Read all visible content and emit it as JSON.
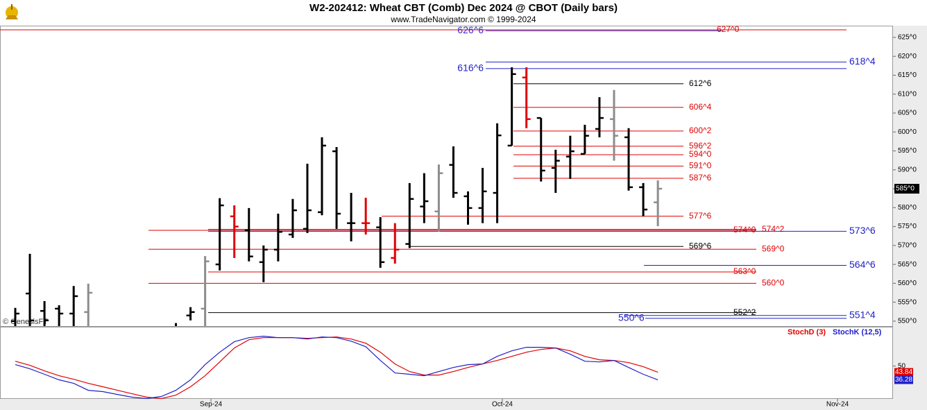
{
  "chart_data": [
    {
      "type": "ohlc",
      "title": "W2-202412:  Wheat CBT (Comb) Dec 2024 @ CBOT  (Daily bars)",
      "subtitle": "www.TradeNavigator.com © 1999-2024",
      "annotations": [
        "© GenesisFT"
      ],
      "last_label": "585^0",
      "xlim": [
        -1.045,
        60.1
      ],
      "ylim": [
        548.7,
        628.1
      ],
      "yticks": [
        {
          "value": 550,
          "label": "550^0"
        },
        {
          "value": 555,
          "label": "555^0"
        },
        {
          "value": 560,
          "label": "560^0"
        },
        {
          "value": 565,
          "label": "565^0"
        },
        {
          "value": 570,
          "label": "570^0"
        },
        {
          "value": 575,
          "label": "575^0"
        },
        {
          "value": 580,
          "label": "580^0"
        },
        {
          "value": 585,
          "label": "585^0"
        },
        {
          "value": 590,
          "label": "590^0"
        },
        {
          "value": 595,
          "label": "595^0"
        },
        {
          "value": 600,
          "label": "600^0"
        },
        {
          "value": 605,
          "label": "605^0"
        },
        {
          "value": 610,
          "label": "610^0"
        },
        {
          "value": 615,
          "label": "615^0"
        },
        {
          "value": 620,
          "label": "620^0"
        },
        {
          "value": 625,
          "label": "625^0"
        }
      ],
      "bars": [
        {
          "open": 550,
          "high": 553.5,
          "low": 547,
          "close": 552,
          "color": "#000000"
        },
        {
          "open": 557.3,
          "high": 567.8,
          "low": 547,
          "close": 550.2,
          "color": "#000000"
        },
        {
          "open": 552.7,
          "high": 555.3,
          "low": 547,
          "close": 550.2,
          "color": "#000000"
        },
        {
          "open": 553.3,
          "high": 554.2,
          "low": 547,
          "close": 552,
          "color": "#000000"
        },
        {
          "open": 552,
          "high": 559.3,
          "low": 547,
          "close": 556.6,
          "color": "#000000"
        },
        {
          "open": 552.4,
          "high": 559.9,
          "low": 547,
          "close": 557.5,
          "color": "#8c8c8c"
        },
        null,
        null,
        null,
        null,
        null,
        {
          "open": 548,
          "high": 549.5,
          "low": 547,
          "close": 548,
          "color": "#000000"
        },
        {
          "open": 551.5,
          "high": 553.7,
          "low": 550.2,
          "close": 552.4,
          "color": "#000000"
        },
        {
          "open": 553.3,
          "high": 567.2,
          "low": 547,
          "close": 565.8,
          "color": "#8c8c8c"
        },
        {
          "open": 565,
          "high": 582.5,
          "low": 563.4,
          "close": 580.6,
          "color": "#000000"
        },
        {
          "open": 577.7,
          "high": 580.6,
          "low": 566.7,
          "close": 575,
          "color": "#e00000"
        },
        {
          "open": 574,
          "high": 579.9,
          "low": 565.8,
          "close": 567.1,
          "color": "#000000"
        },
        {
          "open": 565.6,
          "high": 570,
          "low": 560.3,
          "close": 568.9,
          "color": "#000000"
        },
        {
          "open": 568.9,
          "high": 578.4,
          "low": 565.8,
          "close": 573.6,
          "color": "#000000"
        },
        {
          "open": 572.9,
          "high": 582.3,
          "low": 572,
          "close": 579.3,
          "color": "#000000"
        },
        {
          "open": 574.4,
          "high": 591.6,
          "low": 573.3,
          "close": 579.3,
          "color": "#000000"
        },
        {
          "open": 578.8,
          "high": 598.6,
          "low": 578,
          "close": 596.4,
          "color": "#000000"
        },
        {
          "open": 594.9,
          "high": 596,
          "low": 574.4,
          "close": 578.4,
          "color": "#000000"
        },
        {
          "open": 575.9,
          "high": 583.9,
          "low": 571.1,
          "close": 575.9,
          "color": "#000000"
        },
        {
          "open": 575.9,
          "high": 582.6,
          "low": 572.9,
          "close": 575.9,
          "color": "#e00000"
        },
        {
          "open": 574.8,
          "high": 577.5,
          "low": 564.1,
          "close": 565.6,
          "color": "#000000"
        },
        {
          "open": 566.7,
          "high": 575.9,
          "low": 565.2,
          "close": 568.9,
          "color": "#e00000"
        },
        {
          "open": 570.4,
          "high": 586.5,
          "low": 569.3,
          "close": 582.3,
          "color": "#000000"
        },
        {
          "open": 580.3,
          "high": 589.1,
          "low": 575.9,
          "close": 581.7,
          "color": "#000000"
        },
        {
          "open": 579,
          "high": 591.4,
          "low": 573.7,
          "close": 589.1,
          "color": "#8c8c8c"
        },
        {
          "open": 591.3,
          "high": 596.2,
          "low": 582.6,
          "close": 583.9,
          "color": "#000000"
        },
        {
          "open": 583,
          "high": 584.3,
          "low": 575.5,
          "close": 579.9,
          "color": "#000000"
        },
        {
          "open": 579.9,
          "high": 590.5,
          "low": 575.9,
          "close": 584.3,
          "color": "#000000"
        },
        {
          "open": 583.9,
          "high": 602.3,
          "low": 575.9,
          "close": 599.1,
          "color": "#000000"
        },
        {
          "open": 596.4,
          "high": 617.1,
          "low": 596.4,
          "close": 615.3,
          "color": "#000000"
        },
        {
          "open": 614.4,
          "high": 617.1,
          "low": 601,
          "close": 603.4,
          "color": "#e00000"
        },
        {
          "open": 603.7,
          "high": 603.7,
          "low": 586.9,
          "close": 589.8,
          "color": "#000000"
        },
        {
          "open": 590.5,
          "high": 595.3,
          "low": 583.9,
          "close": 592.4,
          "color": "#000000"
        },
        {
          "open": 593.5,
          "high": 599,
          "low": 587.6,
          "close": 594.9,
          "color": "#000000"
        },
        {
          "open": 594.2,
          "high": 601.9,
          "low": 594.2,
          "close": 599,
          "color": "#000000"
        },
        {
          "open": 600.8,
          "high": 609.2,
          "low": 598.6,
          "close": 603.7,
          "color": "#000000"
        },
        {
          "open": 603.4,
          "high": 611.1,
          "low": 592.4,
          "close": 599,
          "color": "#8c8c8c"
        },
        {
          "open": 598.6,
          "high": 601,
          "low": 584.5,
          "close": 585.4,
          "color": "#000000"
        },
        {
          "open": 585.4,
          "high": 586.5,
          "low": 577.7,
          "close": 579.5,
          "color": "#000000"
        },
        {
          "open": 581.4,
          "high": 587.2,
          "low": 575.1,
          "close": 585,
          "color": "#8c8c8c"
        }
      ],
      "levels": [
        {
          "value": 627,
          "label": "627^0",
          "color": "#e00000"
        },
        {
          "value": 626.75,
          "label": "626^6",
          "color": "#3a2bd0"
        },
        {
          "value": 618.5,
          "label": "618^4",
          "color": "#2020c8"
        },
        {
          "value": 616.75,
          "label": "616^6",
          "color": "#2020c8"
        },
        {
          "value": 612.75,
          "label": "612^6",
          "color": "#000000"
        },
        {
          "value": 606.5,
          "label": "606^4",
          "color": "#e00000"
        },
        {
          "value": 600.25,
          "label": "600^2",
          "color": "#e00000"
        },
        {
          "value": 596.25,
          "label": "596^2",
          "color": "#e00000"
        },
        {
          "value": 594,
          "label": "594^0",
          "color": "#e00000"
        },
        {
          "value": 591,
          "label": "591^0",
          "color": "#e00000"
        },
        {
          "value": 587.75,
          "label": "587^6",
          "color": "#e00000"
        },
        {
          "value": 577.75,
          "label": "577^6",
          "color": "#e00000"
        },
        {
          "value": 574,
          "label": "574^0",
          "color": "#e00000"
        },
        {
          "value": 574.25,
          "label": "574^2",
          "color": "#e00000"
        },
        {
          "value": 573.75,
          "label": "573^6",
          "color": "#2020c8"
        },
        {
          "value": 569.75,
          "label": "569^6",
          "color": "#000000"
        },
        {
          "value": 569,
          "label": "569^0",
          "color": "#e00000"
        },
        {
          "value": 564.75,
          "label": "564^6",
          "color": "#2020c8"
        },
        {
          "value": 563,
          "label": "563^0",
          "color": "#e00000"
        },
        {
          "value": 560,
          "label": "560^0",
          "color": "#e00000"
        },
        {
          "value": 552.25,
          "label": "552^2",
          "color": "#000000"
        },
        {
          "value": 551.5,
          "label": "551^4",
          "color": "#2020c8"
        },
        {
          "value": 550.75,
          "label": "550^6",
          "color": "#2020c8"
        }
      ]
    },
    {
      "type": "line",
      "xlim": [
        -1.045,
        60.1
      ],
      "ylim": [
        16,
        89
      ],
      "yticks": [
        50
      ],
      "xticks": [
        {
          "value": 13.4,
          "label": "Sep-24"
        },
        {
          "value": 33.35,
          "label": "Oct-24"
        },
        {
          "value": 56.3,
          "label": "Nov-24"
        }
      ],
      "series": [
        {
          "name": "StochD (3)",
          "color": "#e00000",
          "values": [
            54.8,
            50.7,
            45.2,
            40.4,
            36.9,
            32.8,
            29.4,
            25.9,
            22.5,
            19.1,
            17.7,
            21.1,
            29.4,
            40.4,
            54.1,
            67.9,
            76.1,
            78.2,
            78.2,
            78.2,
            77.5,
            78.2,
            78.9,
            76.8,
            72.7,
            63.7,
            52.1,
            44.5,
            41.1,
            41.1,
            44.5,
            48.6,
            52.1,
            55.5,
            59.6,
            63.7,
            66.5,
            67.9,
            65.1,
            59.6,
            56.2,
            55.5,
            53.4,
            49.3,
            43.84
          ]
        },
        {
          "name": "StochK (12,5)",
          "color": "#2020c8",
          "values": [
            51.4,
            47.3,
            41.8,
            36.3,
            32.8,
            25.9,
            24.6,
            21.8,
            19.1,
            17.7,
            19.8,
            25.9,
            36.3,
            51.4,
            63.7,
            74.1,
            78.2,
            79.6,
            78.2,
            78.2,
            76.8,
            78.9,
            78.2,
            74.7,
            69.2,
            55.5,
            43.1,
            41.8,
            40.4,
            44.5,
            48.6,
            51.4,
            52.1,
            59.6,
            65.1,
            68.6,
            68.6,
            67.9,
            61.7,
            54.8,
            54.1,
            55.5,
            48.6,
            41.8,
            36.28
          ]
        }
      ]
    }
  ]
}
